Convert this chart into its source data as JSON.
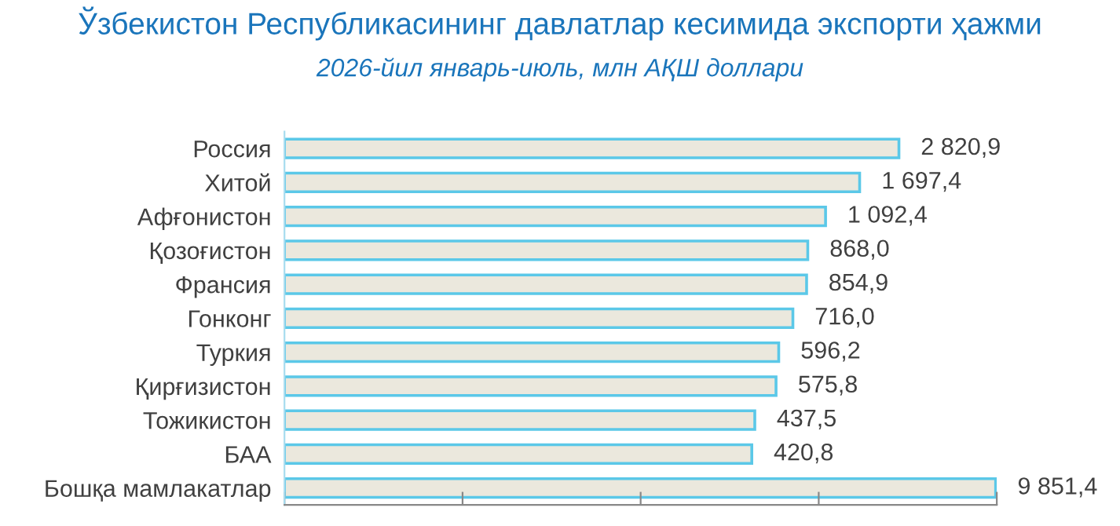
{
  "chart_data": {
    "type": "bar",
    "orientation": "horizontal",
    "log": "x",
    "title": "Ўзбекистон Республикасининг давлатлар кесимида экспорти ҳажми",
    "subtitle": "2026-йил январь-июль, млн АҚШ доллари",
    "categories": [
      "Россия",
      "Хитой",
      "Афғонистон",
      "Қозоғистон",
      "Франсия",
      "Гонконг",
      "Туркия",
      "Қирғизистон",
      "Тожикистон",
      "БАА",
      "Бошқа мамлакатлар"
    ],
    "series": [
      {
        "color": "#ebe8dd",
        "values": [
          2820.9,
          1697.4,
          1092.4,
          868.0,
          854.9,
          716.0,
          596.2,
          575.8,
          437.5,
          420.8,
          9851.4
        ],
        "value_labels": [
          "2 820,9",
          "1 697,4",
          "1 092,4",
          "868,0",
          "854,9",
          "716,0",
          "596,2",
          "575,8",
          "437,5",
          "420,8",
          "9 851,4"
        ]
      }
    ],
    "xlim": [
      1,
      10000
    ],
    "xticks": [
      {
        "value": 1,
        "label": null
      },
      {
        "value": 10,
        "label": null
      },
      {
        "value": 100,
        "label": null
      },
      {
        "value": 1000,
        "label": null
      },
      {
        "value": 10000,
        "label": null
      }
    ],
    "tick_labels": "y",
    "grid": false,
    "legend": false
  }
}
